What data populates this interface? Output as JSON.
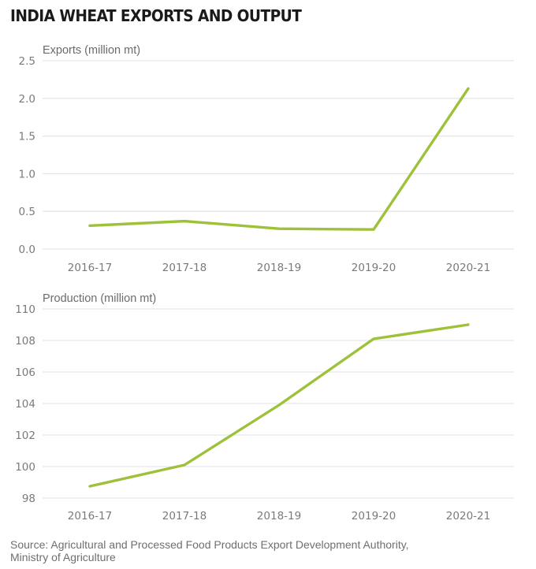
{
  "title": "INDIA WHEAT EXPORTS AND OUTPUT",
  "source_line1": "Source: Agricultural and Processed Food Products Export Development Authority,",
  "source_line2": "Ministry of Agriculture",
  "line_color": "#9dc23a",
  "chart_data": [
    {
      "type": "line",
      "title": "Exports (million mt)",
      "xlabel": "",
      "ylabel": "Exports (million mt)",
      "categories": [
        "2016-17",
        "2017-18",
        "2018-19",
        "2019-20",
        "2020-21"
      ],
      "series": [
        {
          "name": "Exports",
          "values": [
            0.31,
            0.37,
            0.27,
            0.26,
            2.13
          ]
        }
      ],
      "ylim": [
        0,
        2.5
      ],
      "yticks": [
        0.0,
        0.5,
        1.0,
        1.5,
        2.0,
        2.5
      ],
      "ytick_labels": [
        "0.0",
        "0.5",
        "1.0",
        "1.5",
        "2.0",
        "2.5"
      ],
      "grid": true,
      "legend": "none"
    },
    {
      "type": "line",
      "title": "Production (million mt)",
      "xlabel": "",
      "ylabel": "Production (million mt)",
      "categories": [
        "2016-17",
        "2017-18",
        "2018-19",
        "2019-20",
        "2020-21"
      ],
      "series": [
        {
          "name": "Production",
          "values": [
            98.75,
            100.1,
            103.9,
            108.1,
            109.0
          ]
        }
      ],
      "ylim": [
        98,
        110
      ],
      "yticks": [
        98,
        100,
        102,
        104,
        106,
        108,
        110
      ],
      "ytick_labels": [
        "98",
        "100",
        "102",
        "104",
        "106",
        "108",
        "110"
      ],
      "grid": true,
      "legend": "none"
    }
  ]
}
